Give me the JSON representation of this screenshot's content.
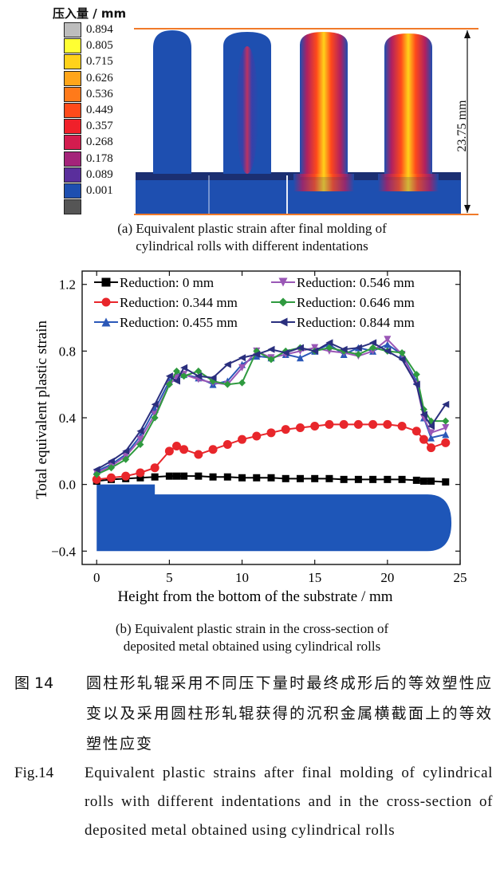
{
  "panel_a": {
    "legend_title": "压入量 / mm",
    "colorbar": [
      {
        "label": "0.894",
        "color": "#bdbdbd"
      },
      {
        "label": "0.805",
        "color": "#ffff33"
      },
      {
        "label": "0.715",
        "color": "#ffd21a"
      },
      {
        "label": "0.626",
        "color": "#ffa51a"
      },
      {
        "label": "0.536",
        "color": "#ff7a1a"
      },
      {
        "label": "0.449",
        "color": "#ff4a1a"
      },
      {
        "label": "0.357",
        "color": "#f0202a"
      },
      {
        "label": "0.268",
        "color": "#d31c4f"
      },
      {
        "label": "0.178",
        "color": "#a4247a"
      },
      {
        "label": "0.089",
        "color": "#5a2f9c"
      },
      {
        "label": "0.001",
        "color": "#1e4fb0"
      },
      {
        "label": "",
        "color": "#555555"
      }
    ],
    "dimension_label": "23.75 mm",
    "caption": [
      "(a) Equivalent plastic strain after final molding of",
      "cylindrical rolls with different indentations"
    ]
  },
  "chart_data": {
    "type": "line",
    "xlabel": "Height from the bottom of the substrate / mm",
    "ylabel": "Total equivalent plastic strain",
    "xlim": [
      -1,
      25
    ],
    "ylim": [
      -0.48,
      1.28
    ],
    "xticks": [
      0,
      5,
      10,
      15,
      20,
      25
    ],
    "yticks": [
      -0.4,
      0.0,
      0.4,
      0.8,
      1.2
    ],
    "ytick_labels": [
      "−0.4",
      "0.0",
      "0.4",
      "0.8",
      "1.2"
    ],
    "legend_position": "top",
    "x": [
      0,
      1,
      2,
      3,
      4,
      5,
      5.5,
      6,
      7,
      8,
      9,
      10,
      11,
      12,
      13,
      14,
      15,
      16,
      17,
      18,
      19,
      20,
      21,
      22,
      22.5,
      23,
      24
    ],
    "series": [
      {
        "name": "Reduction: 0 mm",
        "color": "#000000",
        "marker": "square",
        "values": [
          0.02,
          0.03,
          0.035,
          0.04,
          0.045,
          0.05,
          0.05,
          0.05,
          0.05,
          0.045,
          0.045,
          0.04,
          0.04,
          0.04,
          0.035,
          0.035,
          0.035,
          0.035,
          0.03,
          0.03,
          0.03,
          0.03,
          0.03,
          0.025,
          0.02,
          0.02,
          0.015
        ]
      },
      {
        "name": "Reduction: 0.344 mm",
        "color": "#e8262b",
        "marker": "circle",
        "values": [
          0.03,
          0.04,
          0.05,
          0.07,
          0.1,
          0.2,
          0.23,
          0.21,
          0.18,
          0.21,
          0.24,
          0.27,
          0.29,
          0.31,
          0.33,
          0.34,
          0.35,
          0.36,
          0.36,
          0.36,
          0.36,
          0.36,
          0.35,
          0.32,
          0.27,
          0.22,
          0.25
        ]
      },
      {
        "name": "Reduction: 0.455 mm",
        "color": "#2b58b8",
        "marker": "triangle-up",
        "values": [
          0.08,
          0.12,
          0.18,
          0.29,
          0.45,
          0.62,
          0.66,
          0.66,
          0.64,
          0.6,
          0.62,
          0.72,
          0.77,
          0.76,
          0.78,
          0.76,
          0.8,
          0.84,
          0.78,
          0.82,
          0.8,
          0.84,
          0.78,
          0.62,
          0.4,
          0.28,
          0.3
        ]
      },
      {
        "name": "Reduction: 0.546 mm",
        "color": "#9a57b6",
        "marker": "triangle-down",
        "values": [
          0.07,
          0.11,
          0.17,
          0.27,
          0.42,
          0.6,
          0.64,
          0.66,
          0.63,
          0.61,
          0.6,
          0.7,
          0.8,
          0.76,
          0.78,
          0.8,
          0.82,
          0.8,
          0.79,
          0.77,
          0.8,
          0.87,
          0.78,
          0.6,
          0.4,
          0.31,
          0.34
        ]
      },
      {
        "name": "Reduction: 0.646 mm",
        "color": "#2f9a3f",
        "marker": "diamond",
        "values": [
          0.06,
          0.1,
          0.15,
          0.24,
          0.4,
          0.6,
          0.68,
          0.65,
          0.68,
          0.62,
          0.6,
          0.61,
          0.8,
          0.75,
          0.8,
          0.82,
          0.8,
          0.82,
          0.8,
          0.78,
          0.82,
          0.8,
          0.79,
          0.66,
          0.45,
          0.38,
          0.38
        ]
      },
      {
        "name": "Reduction: 0.844 mm",
        "color": "#2a2f7e",
        "marker": "tri-left",
        "values": [
          0.09,
          0.14,
          0.2,
          0.32,
          0.48,
          0.65,
          0.62,
          0.7,
          0.65,
          0.64,
          0.72,
          0.76,
          0.78,
          0.81,
          0.79,
          0.82,
          0.8,
          0.85,
          0.81,
          0.82,
          0.85,
          0.8,
          0.75,
          0.6,
          0.42,
          0.35,
          0.48
        ]
      }
    ],
    "caption": [
      "(b) Equivalent plastic strain in the cross-section of",
      "deposited metal obtained using cylindrical rolls"
    ]
  },
  "figure_caption": {
    "cn_number": "图 14",
    "cn_text": "圆柱形轧辊采用不同压下量时最终成形后的等效塑性应变以及采用圆柱形轧辊获得的沉积金属横截面上的等效塑性应变",
    "en_number": "Fig.14",
    "en_text": "Equivalent plastic strains after final molding of cylindrical rolls with different indentations and in the cross-section of deposited metal obtained using cylindrical rolls"
  }
}
